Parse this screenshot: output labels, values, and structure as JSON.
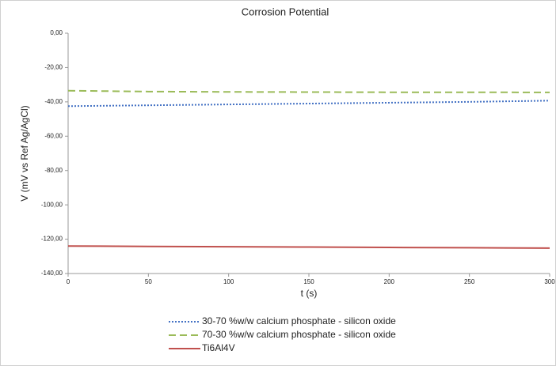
{
  "chart_data": {
    "type": "line",
    "title": "Corrosion Potential",
    "x_label": "t (s)",
    "y_label": "V (mV vs Ref Ag/AgCl)",
    "x": [
      0,
      50,
      100,
      150,
      200,
      250,
      300
    ],
    "series": [
      {
        "name": "30-70 %w/w calcium phosphate - silicon oxide",
        "color": "#4472c4",
        "style": "dotted",
        "values": [
          -42.5,
          -42,
          -41.5,
          -41,
          -40.5,
          -40,
          -39.3
        ]
      },
      {
        "name": "70-30 %w/w calcium phosphate - silicon oxide",
        "color": "#9bbb59",
        "style": "dashed",
        "values": [
          -33.5,
          -34,
          -34.2,
          -34.3,
          -34.4,
          -34.4,
          -34.5
        ]
      },
      {
        "name": "Ti6Al4V",
        "color": "#c0504d",
        "style": "solid",
        "values": [
          -124,
          -124.2,
          -124.4,
          -124.6,
          -124.8,
          -125,
          -125.2
        ]
      }
    ],
    "xlim": [
      0,
      300
    ],
    "xticks": [
      0,
      50,
      100,
      150,
      200,
      250,
      300
    ],
    "ylim": [
      -140,
      0
    ],
    "yticks": [
      {
        "value": 0,
        "label": "0,00"
      },
      {
        "value": -20,
        "label": "-20,00"
      },
      {
        "value": -40,
        "label": "-40,00"
      },
      {
        "value": -60,
        "label": "-60,00"
      },
      {
        "value": -80,
        "label": "-80,00"
      },
      {
        "value": -100,
        "label": "-100,00"
      },
      {
        "value": -120,
        "label": "-120,00"
      },
      {
        "value": -140,
        "label": "-140,00"
      }
    ],
    "grid": false,
    "legend": "bottom"
  }
}
